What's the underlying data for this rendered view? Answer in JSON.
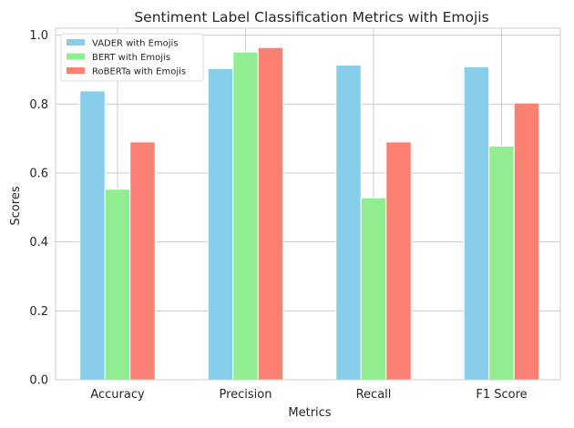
{
  "chart_data": {
    "type": "bar",
    "title": "Sentiment Label Classification Metrics with Emojis",
    "xlabel": "Metrics",
    "ylabel": "Scores",
    "categories": [
      "Accuracy",
      "Precision",
      "Recall",
      "F1 Score"
    ],
    "series": [
      {
        "name": "VADER with Emojis",
        "color": "#87ceeb",
        "values": [
          0.838,
          0.903,
          0.913,
          0.908
        ]
      },
      {
        "name": "BERT with Emojis",
        "color": "#90ee90",
        "values": [
          0.553,
          0.951,
          0.528,
          0.678
        ]
      },
      {
        "name": "RoBERTa with Emojis",
        "color": "#fa8072",
        "values": [
          0.69,
          0.964,
          0.69,
          0.803
        ]
      }
    ],
    "ylim": [
      0,
      1.0
    ],
    "yticks": [
      "0.0",
      "0.2",
      "0.4",
      "0.6",
      "0.8",
      "1.0"
    ],
    "grid": true,
    "legend_position": "top-left"
  }
}
